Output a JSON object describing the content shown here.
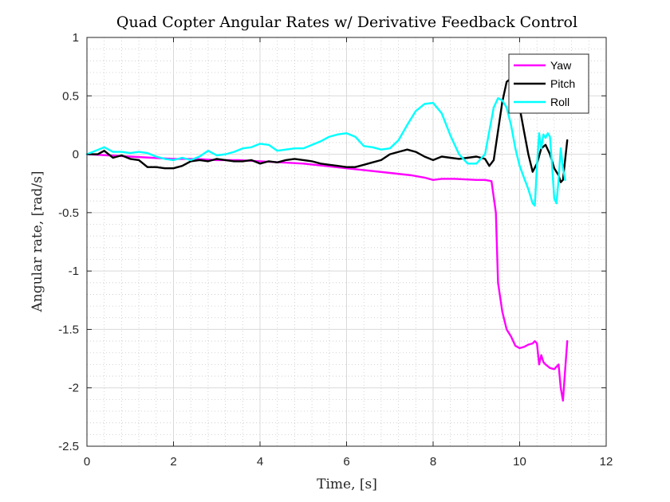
{
  "chart_data": {
    "type": "line",
    "title": "Quad Copter Angular Rates w/ Derivative Feedback Control",
    "xlabel": "Time, [s]",
    "ylabel": "Angular rate, [rad/s]",
    "xlim": [
      0,
      12
    ],
    "ylim": [
      -2.5,
      1
    ],
    "xticks": [
      0,
      2,
      4,
      6,
      8,
      10,
      12
    ],
    "yticks": [
      -2.5,
      -2,
      -1.5,
      -1,
      -0.5,
      0,
      0.5,
      1
    ],
    "xtick_labels": [
      "0",
      "2",
      "4",
      "6",
      "8",
      "10",
      "12"
    ],
    "ytick_labels": [
      "-2.5",
      "-2",
      "-1.5",
      "-1",
      "-0.5",
      "0",
      "0.5",
      "1"
    ],
    "grid": true,
    "minor_grid": true,
    "legend_position": "top-right",
    "series": [
      {
        "name": "Yaw",
        "color": "#ff00ff",
        "x": [
          0,
          0.5,
          1,
          1.5,
          2,
          2.5,
          3,
          3.5,
          4,
          4.5,
          5,
          5.5,
          6,
          6.5,
          7,
          7.5,
          7.8,
          8,
          8.2,
          8.5,
          9,
          9.2,
          9.35,
          9.45,
          9.5,
          9.6,
          9.7,
          9.8,
          9.9,
          10,
          10.1,
          10.2,
          10.3,
          10.35,
          10.4,
          10.45,
          10.5,
          10.55,
          10.6,
          10.7,
          10.8,
          10.85,
          10.9,
          10.95,
          11,
          11.05,
          11.1
        ],
        "y": [
          0,
          -0.01,
          -0.02,
          -0.03,
          -0.04,
          -0.04,
          -0.05,
          -0.05,
          -0.06,
          -0.07,
          -0.08,
          -0.1,
          -0.12,
          -0.14,
          -0.16,
          -0.18,
          -0.2,
          -0.22,
          -0.21,
          -0.21,
          -0.22,
          -0.22,
          -0.23,
          -0.5,
          -1.1,
          -1.35,
          -1.5,
          -1.56,
          -1.64,
          -1.66,
          -1.65,
          -1.63,
          -1.62,
          -1.6,
          -1.62,
          -1.8,
          -1.72,
          -1.78,
          -1.8,
          -1.83,
          -1.84,
          -1.82,
          -1.8,
          -2.0,
          -2.11,
          -1.85,
          -1.6
        ]
      },
      {
        "name": "Pitch",
        "color": "#000000",
        "x": [
          0,
          0.25,
          0.4,
          0.6,
          0.8,
          1,
          1.2,
          1.4,
          1.6,
          1.8,
          2,
          2.2,
          2.4,
          2.6,
          2.8,
          3,
          3.2,
          3.4,
          3.6,
          3.8,
          4,
          4.2,
          4.4,
          4.6,
          4.8,
          5,
          5.2,
          5.4,
          5.6,
          5.8,
          6,
          6.2,
          6.4,
          6.6,
          6.8,
          7,
          7.2,
          7.4,
          7.6,
          7.8,
          8,
          8.2,
          8.4,
          8.6,
          8.8,
          9,
          9.2,
          9.3,
          9.4,
          9.5,
          9.6,
          9.7,
          9.8,
          9.9,
          10,
          10.1,
          10.2,
          10.3,
          10.4,
          10.5,
          10.6,
          10.7,
          10.8,
          10.9,
          10.95,
          11,
          11.05,
          11.1
        ],
        "y": [
          0,
          0,
          0.03,
          -0.03,
          -0.01,
          -0.04,
          -0.05,
          -0.11,
          -0.11,
          -0.12,
          -0.12,
          -0.1,
          -0.06,
          -0.05,
          -0.06,
          -0.04,
          -0.05,
          -0.06,
          -0.06,
          -0.05,
          -0.08,
          -0.06,
          -0.07,
          -0.05,
          -0.04,
          -0.05,
          -0.06,
          -0.08,
          -0.09,
          -0.1,
          -0.11,
          -0.11,
          -0.09,
          -0.07,
          -0.05,
          0.0,
          0.02,
          0.04,
          0.02,
          -0.02,
          -0.05,
          -0.02,
          -0.03,
          -0.04,
          -0.03,
          -0.02,
          -0.04,
          -0.1,
          -0.05,
          0.2,
          0.45,
          0.62,
          0.65,
          0.6,
          0.4,
          0.2,
          0.0,
          -0.15,
          -0.08,
          0.05,
          0.08,
          0.0,
          -0.12,
          -0.18,
          -0.24,
          -0.22,
          -0.05,
          0.12
        ]
      },
      {
        "name": "Roll",
        "color": "#00ffff",
        "x": [
          0,
          0.2,
          0.4,
          0.6,
          0.8,
          1,
          1.2,
          1.4,
          1.6,
          1.8,
          2,
          2.2,
          2.4,
          2.6,
          2.8,
          3,
          3.2,
          3.4,
          3.6,
          3.8,
          4,
          4.2,
          4.4,
          4.6,
          4.8,
          5,
          5.2,
          5.4,
          5.6,
          5.8,
          6,
          6.2,
          6.4,
          6.6,
          6.8,
          7,
          7.2,
          7.4,
          7.6,
          7.8,
          8,
          8.2,
          8.4,
          8.6,
          8.8,
          9,
          9.2,
          9.3,
          9.4,
          9.5,
          9.6,
          9.7,
          9.8,
          9.9,
          10,
          10.1,
          10.2,
          10.3,
          10.35,
          10.4,
          10.45,
          10.5,
          10.55,
          10.6,
          10.65,
          10.7,
          10.75,
          10.8,
          10.85,
          10.9,
          10.95,
          11,
          11.05
        ],
        "y": [
          0,
          0.03,
          0.06,
          0.02,
          0.02,
          0.01,
          0.02,
          0.01,
          -0.02,
          -0.04,
          -0.05,
          -0.03,
          -0.05,
          -0.02,
          0.03,
          -0.01,
          0.0,
          0.02,
          0.05,
          0.06,
          0.09,
          0.08,
          0.03,
          0.04,
          0.05,
          0.05,
          0.08,
          0.11,
          0.15,
          0.17,
          0.18,
          0.15,
          0.07,
          0.06,
          0.04,
          0.05,
          0.12,
          0.25,
          0.37,
          0.43,
          0.44,
          0.35,
          0.16,
          0.0,
          -0.08,
          -0.08,
          0.0,
          0.2,
          0.4,
          0.48,
          0.46,
          0.4,
          0.25,
          0.05,
          -0.1,
          -0.2,
          -0.3,
          -0.42,
          -0.44,
          -0.1,
          0.18,
          0.05,
          0.17,
          0.14,
          0.18,
          0.15,
          -0.1,
          -0.38,
          -0.42,
          -0.22,
          0.05,
          -0.12,
          -0.22
        ]
      }
    ]
  }
}
